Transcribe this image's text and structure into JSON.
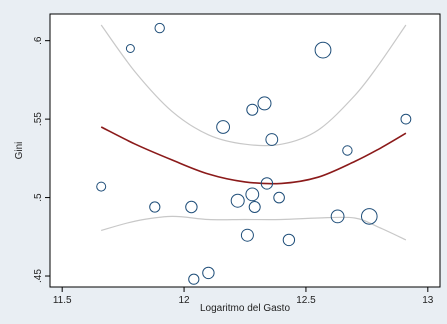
{
  "chart_data": {
    "type": "scatter",
    "title": "",
    "xlabel": "Logaritmo del Gasto",
    "ylabel": "Gini",
    "xlim": [
      11.45,
      13.05
    ],
    "ylim": [
      0.443,
      0.617
    ],
    "x_ticks": [
      11.5,
      12,
      12.5,
      13
    ],
    "x_tick_labels": [
      "11.5",
      "12",
      "12.5",
      "13"
    ],
    "y_ticks": [
      0.45,
      0.5,
      0.55,
      0.6
    ],
    "y_tick_labels": [
      ".45",
      ".5",
      ".55",
      ".6"
    ],
    "grid": false,
    "legend": "none",
    "colors": {
      "background": "#e9eef3",
      "plot_area": "#ffffff",
      "marker": "#1f4e79",
      "fit_line": "#8b1a1a",
      "ci_band": "#c8c8c8"
    },
    "points": [
      {
        "x": 11.66,
        "y": 0.507,
        "weight": 1.0
      },
      {
        "x": 11.78,
        "y": 0.595,
        "weight": 0.8
      },
      {
        "x": 11.88,
        "y": 0.494,
        "weight": 1.3
      },
      {
        "x": 11.9,
        "y": 0.608,
        "weight": 1.1
      },
      {
        "x": 12.03,
        "y": 0.494,
        "weight": 1.6
      },
      {
        "x": 12.04,
        "y": 0.448,
        "weight": 1.3
      },
      {
        "x": 12.1,
        "y": 0.452,
        "weight": 1.6
      },
      {
        "x": 12.16,
        "y": 0.545,
        "weight": 2.0
      },
      {
        "x": 12.22,
        "y": 0.498,
        "weight": 2.1
      },
      {
        "x": 12.26,
        "y": 0.476,
        "weight": 1.8
      },
      {
        "x": 12.28,
        "y": 0.556,
        "weight": 1.5
      },
      {
        "x": 12.28,
        "y": 0.502,
        "weight": 2.0
      },
      {
        "x": 12.29,
        "y": 0.494,
        "weight": 1.5
      },
      {
        "x": 12.33,
        "y": 0.56,
        "weight": 2.1
      },
      {
        "x": 12.34,
        "y": 0.509,
        "weight": 1.6
      },
      {
        "x": 12.36,
        "y": 0.537,
        "weight": 1.7
      },
      {
        "x": 12.39,
        "y": 0.5,
        "weight": 1.4
      },
      {
        "x": 12.43,
        "y": 0.473,
        "weight": 1.6
      },
      {
        "x": 12.57,
        "y": 0.594,
        "weight": 3.1
      },
      {
        "x": 12.63,
        "y": 0.488,
        "weight": 2.0
      },
      {
        "x": 12.67,
        "y": 0.53,
        "weight": 1.1
      },
      {
        "x": 12.76,
        "y": 0.488,
        "weight": 3.0
      },
      {
        "x": 12.91,
        "y": 0.55,
        "weight": 1.2
      }
    ],
    "fit": {
      "x": [
        11.66,
        11.8,
        11.95,
        12.1,
        12.25,
        12.4,
        12.55,
        12.7,
        12.8,
        12.91
      ],
      "y": [
        0.545,
        0.534,
        0.524,
        0.515,
        0.51,
        0.509,
        0.513,
        0.523,
        0.531,
        0.541
      ]
    },
    "ci_upper": {
      "x": [
        11.66,
        11.8,
        11.95,
        12.1,
        12.25,
        12.4,
        12.55,
        12.7,
        12.8,
        12.91
      ],
      "y": [
        0.61,
        0.58,
        0.555,
        0.54,
        0.534,
        0.534,
        0.543,
        0.565,
        0.585,
        0.61
      ]
    },
    "ci_lower": {
      "x": [
        11.66,
        11.8,
        11.95,
        12.1,
        12.25,
        12.4,
        12.55,
        12.7,
        12.8,
        12.91
      ],
      "y": [
        0.479,
        0.485,
        0.488,
        0.486,
        0.486,
        0.486,
        0.487,
        0.487,
        0.481,
        0.473
      ]
    }
  }
}
